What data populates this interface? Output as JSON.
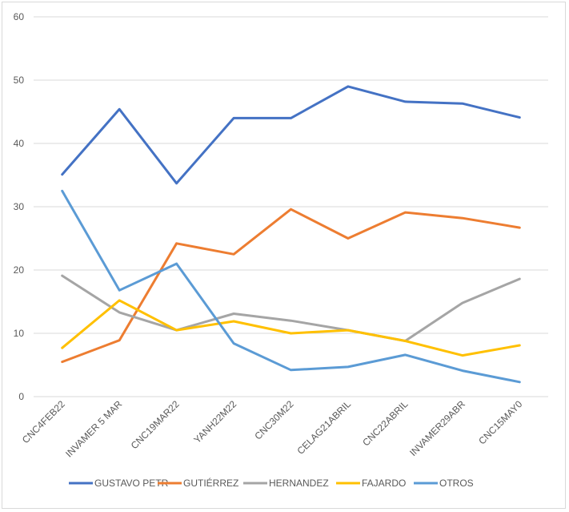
{
  "chart_data": {
    "type": "line",
    "title": "",
    "xlabel": "",
    "ylabel": "",
    "ylim": [
      0,
      60
    ],
    "yticks": [
      0,
      10,
      20,
      30,
      40,
      50,
      60
    ],
    "grid": true,
    "legend_position": "bottom",
    "categories": [
      "CNC4FEB22",
      "INVAMER 5 MAR",
      "CNC19MAR22",
      "YANH22M22",
      "CNC30M22",
      "CELAG21ABRIL",
      "CNC22ABRIL",
      "INVAMER29ABR",
      "CNC15MAY0"
    ],
    "series": [
      {
        "name": "GUSTAVO PETR",
        "color": "#4472c4",
        "values": [
          35.1,
          45.4,
          33.7,
          44.0,
          44.0,
          49.0,
          46.6,
          46.3,
          44.1
        ]
      },
      {
        "name": "GUTIÉRREZ",
        "color": "#ed7d31",
        "values": [
          5.5,
          8.9,
          24.2,
          22.5,
          29.6,
          25.0,
          29.1,
          28.2,
          26.7
        ]
      },
      {
        "name": "HERNANDEZ",
        "color": "#a5a5a5",
        "values": [
          19.1,
          13.3,
          10.5,
          13.1,
          12.0,
          10.5,
          8.8,
          14.8,
          18.6
        ]
      },
      {
        "name": "FAJARDO",
        "color": "#ffc000",
        "values": [
          7.7,
          15.2,
          10.5,
          11.9,
          10.0,
          10.5,
          8.8,
          6.5,
          8.1
        ]
      },
      {
        "name": "OTROS",
        "color": "#5b9bd5",
        "values": [
          32.5,
          16.8,
          21.0,
          8.4,
          4.2,
          4.7,
          6.6,
          4.1,
          2.3
        ]
      }
    ]
  }
}
